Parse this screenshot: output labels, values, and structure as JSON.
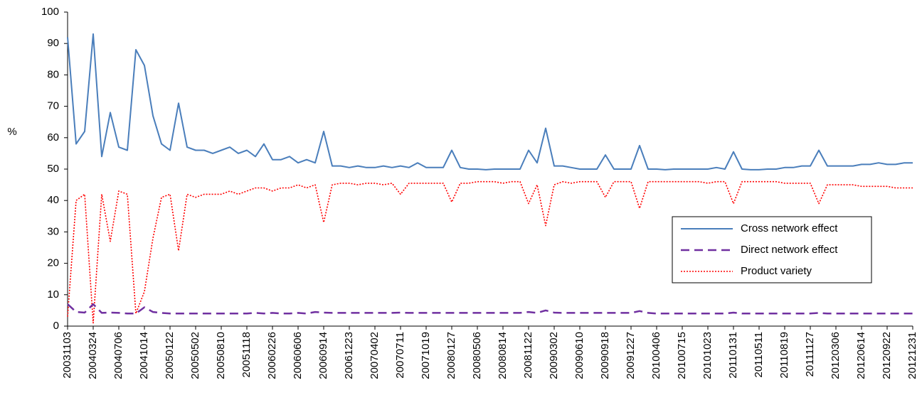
{
  "chart_data": {
    "type": "line",
    "y_label": "%",
    "categories": [
      "20031103",
      null,
      null,
      "20040324",
      null,
      null,
      "20040706",
      null,
      null,
      "20041014",
      null,
      null,
      "20050122",
      null,
      null,
      "20050502",
      null,
      null,
      "20050810",
      null,
      null,
      "20051118",
      null,
      null,
      "20060226",
      null,
      null,
      "20060606",
      null,
      null,
      "20060914",
      null,
      null,
      "20061223",
      null,
      null,
      "20070402",
      null,
      null,
      "20070711",
      null,
      null,
      "20071019",
      null,
      null,
      "20080127",
      null,
      null,
      "20080506",
      null,
      null,
      "20080814",
      null,
      null,
      "20081122",
      null,
      null,
      "20090302",
      null,
      null,
      "20090610",
      null,
      null,
      "20090918",
      null,
      null,
      "20091227",
      null,
      null,
      "20100406",
      null,
      null,
      "20100715",
      null,
      null,
      "20101023",
      null,
      null,
      "20110131",
      null,
      null,
      "20110511",
      null,
      null,
      "20110819",
      null,
      null,
      "20111127",
      null,
      null,
      "20120306",
      null,
      null,
      "20120614",
      null,
      null,
      "20120922",
      null,
      null,
      "20121231"
    ],
    "series": [
      {
        "name": "Cross network effect",
        "color": "#4a7ebb",
        "style": "solid",
        "values": [
          92,
          58,
          62,
          93,
          54,
          68,
          57,
          56,
          88,
          83,
          67,
          58,
          56,
          71,
          57,
          56,
          56,
          55,
          56,
          57,
          55,
          56,
          54,
          58,
          53,
          53,
          54,
          52,
          53,
          52,
          62,
          51,
          51,
          50.5,
          51,
          50.5,
          50.5,
          51,
          50.5,
          51,
          50.5,
          52,
          50.5,
          50.5,
          50.5,
          56,
          50.5,
          50,
          50,
          49.8,
          50,
          50,
          50,
          50,
          56,
          52,
          63,
          51,
          51,
          50.5,
          50,
          50,
          50,
          54.5,
          50,
          50,
          50,
          57.5,
          50,
          50,
          49.8,
          50,
          50,
          50,
          50,
          50,
          50.5,
          50,
          55.5,
          50,
          49.8,
          49.8,
          50,
          50,
          50.5,
          50.5,
          51,
          51,
          56,
          51,
          51,
          51,
          51,
          51.5,
          51.5,
          52,
          51.5,
          51.5,
          52,
          52
        ]
      },
      {
        "name": "Direct network effect",
        "color": "#7030a0",
        "style": "dashed",
        "values": [
          7,
          4.5,
          4.3,
          7,
          4.2,
          4.3,
          4.2,
          4,
          4,
          6,
          4.5,
          4.2,
          4,
          4,
          4,
          4,
          4,
          4,
          4,
          4,
          4,
          4,
          4.2,
          4,
          4.2,
          4,
          4,
          4.2,
          4,
          4.5,
          4.3,
          4.2,
          4.2,
          4.2,
          4.2,
          4.2,
          4.2,
          4.2,
          4.2,
          4.3,
          4.2,
          4.2,
          4.2,
          4.2,
          4.2,
          4.2,
          4.2,
          4.2,
          4.2,
          4.2,
          4.2,
          4.2,
          4.2,
          4.2,
          4.5,
          4.2,
          5,
          4.3,
          4.2,
          4.2,
          4.2,
          4.2,
          4.2,
          4.2,
          4.2,
          4.2,
          4.2,
          4.8,
          4.2,
          4,
          4,
          4,
          4,
          4,
          4,
          4,
          4,
          4,
          4.3,
          4,
          4,
          4,
          4,
          4,
          4,
          4,
          4,
          4,
          4.2,
          4,
          4,
          4,
          4,
          4,
          4,
          4,
          4,
          4,
          4,
          4
        ]
      },
      {
        "name": "Product variety",
        "color": "#ff0000",
        "style": "dotted",
        "values": [
          3,
          40,
          42,
          1,
          42,
          27,
          43,
          42,
          4,
          11,
          28,
          41,
          42,
          24,
          42,
          41,
          42,
          42,
          42,
          43,
          42,
          43,
          44,
          44,
          43,
          44,
          44,
          45,
          44,
          45,
          33,
          45,
          45.5,
          45.5,
          45,
          45.5,
          45.5,
          45,
          45.5,
          42,
          45.5,
          45.5,
          45.5,
          45.5,
          45.5,
          39.5,
          45.5,
          45.5,
          46,
          46,
          46,
          45.5,
          46,
          46,
          39,
          45,
          32,
          45,
          46,
          45.5,
          46,
          46,
          46,
          41,
          46,
          46,
          46,
          37.5,
          46,
          46,
          46,
          46,
          46,
          46,
          46,
          45.5,
          46,
          46,
          39,
          46,
          46,
          46,
          46,
          46,
          45.5,
          45.5,
          45.5,
          45.5,
          39,
          45,
          45,
          45,
          45,
          44.5,
          44.5,
          44.5,
          44.5,
          44,
          44,
          44
        ]
      }
    ],
    "ylim": [
      0,
      100
    ],
    "yticks": [
      0,
      10,
      20,
      30,
      40,
      50,
      60,
      70,
      80,
      90,
      100
    ],
    "grid": false,
    "legend": "right"
  }
}
